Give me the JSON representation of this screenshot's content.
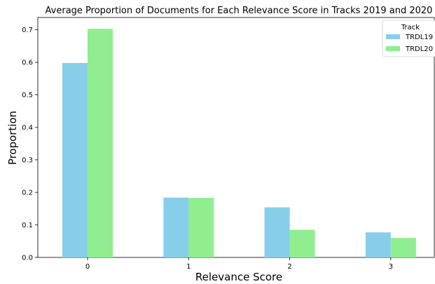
{
  "chart_data": {
    "type": "bar",
    "title": "Average Proportion of Documents for Each Relevance Score in Tracks 2019 and 2020",
    "xlabel": "Relevance Score",
    "ylabel": "Proportion",
    "categories": [
      "0",
      "1",
      "2",
      "3"
    ],
    "series": [
      {
        "name": "TRDL19",
        "color": "#87ceeb",
        "values": [
          0.598,
          0.184,
          0.154,
          0.077
        ]
      },
      {
        "name": "TRDL20",
        "color": "#90ee90",
        "values": [
          0.703,
          0.183,
          0.085,
          0.06
        ]
      }
    ],
    "ylim": [
      0,
      0.7378
    ],
    "yticks": [
      "0.0",
      "0.1",
      "0.2",
      "0.3",
      "0.4",
      "0.5",
      "0.6",
      "0.7"
    ],
    "grid": false,
    "legend": {
      "title": "Track",
      "placement": "top-right"
    }
  }
}
